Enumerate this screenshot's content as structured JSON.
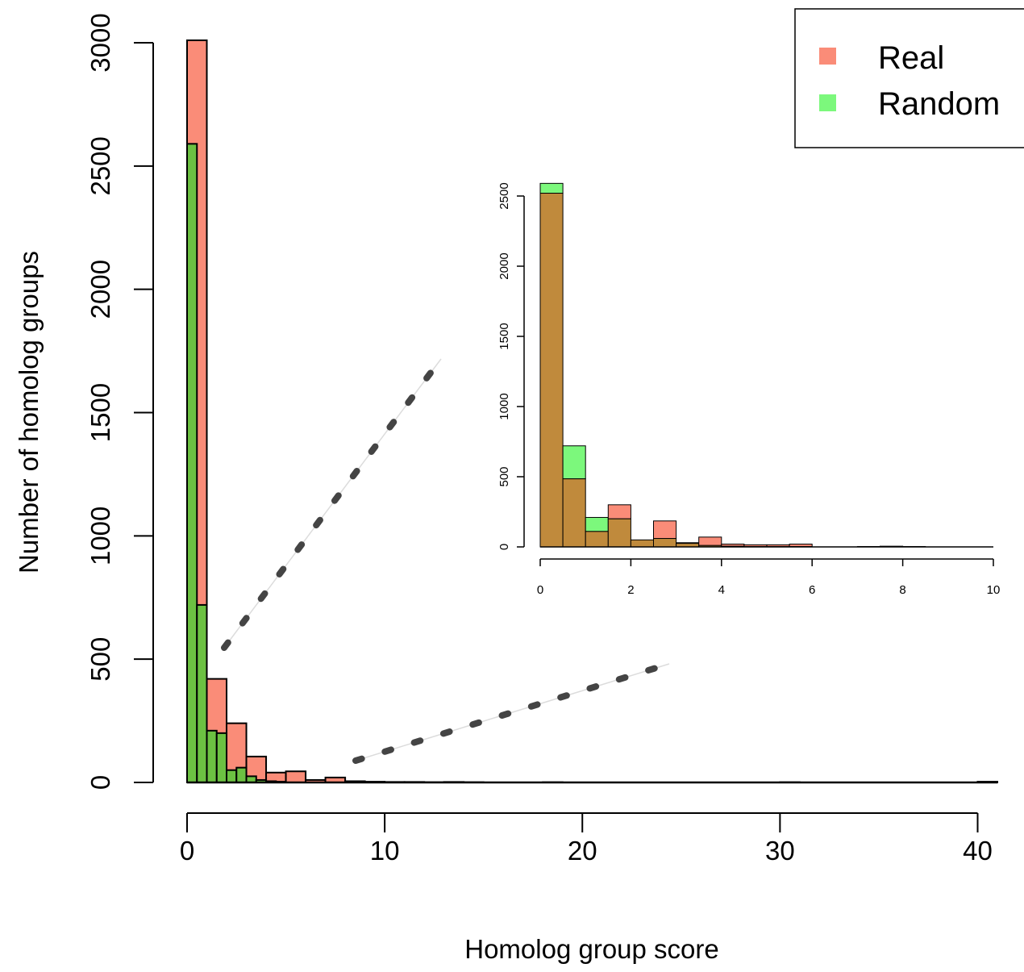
{
  "chart_data": [
    {
      "type": "bar",
      "panel": "main",
      "xlabel": "Homolog group score",
      "ylabel": "Number of homolog groups",
      "xlim": [
        0,
        41
      ],
      "ylim": [
        0,
        3000
      ],
      "xticks": [
        0,
        10,
        20,
        30,
        40
      ],
      "yticks": [
        0,
        500,
        1000,
        1500,
        2000,
        2500,
        3000
      ],
      "series": [
        {
          "name": "Real",
          "color": "#FA8C78",
          "bins": [
            [
              0,
              1,
              3010
            ],
            [
              1,
              2,
              420
            ],
            [
              2,
              3,
              240
            ],
            [
              3,
              4,
              105
            ],
            [
              4,
              5,
              40
            ],
            [
              5,
              6,
              45
            ],
            [
              6,
              7,
              10
            ],
            [
              7,
              8,
              20
            ],
            [
              8,
              9,
              5
            ],
            [
              9,
              10,
              3
            ],
            [
              10,
              11,
              2
            ],
            [
              11,
              12,
              2
            ],
            [
              12,
              13,
              1
            ],
            [
              13,
              14,
              2
            ],
            [
              14,
              15,
              1
            ],
            [
              18,
              19,
              1
            ],
            [
              30,
              31,
              1
            ],
            [
              40,
              41,
              3
            ]
          ]
        },
        {
          "name": "Random",
          "color": "#6CC142",
          "bins": [
            [
              0,
              0.5,
              2590
            ],
            [
              0.5,
              1,
              720
            ],
            [
              1,
              1.5,
              210
            ],
            [
              1.5,
              2,
              200
            ],
            [
              2,
              2.5,
              50
            ],
            [
              2.5,
              3,
              60
            ],
            [
              3,
              3.5,
              25
            ],
            [
              3.5,
              4,
              10
            ],
            [
              4,
              4.5,
              5
            ],
            [
              4.5,
              5,
              3
            ]
          ]
        }
      ]
    },
    {
      "type": "bar",
      "panel": "inset",
      "xlim": [
        0,
        10
      ],
      "ylim": [
        0,
        2500
      ],
      "xticks": [
        0,
        2,
        4,
        6,
        8,
        10
      ],
      "yticks": [
        0,
        500,
        1000,
        1500,
        2000,
        2500
      ],
      "bin_width": 0.5,
      "series": [
        {
          "name": "Real",
          "color": "#FA8C78",
          "values": [
            2520,
            485,
            110,
            300,
            50,
            185,
            30,
            70,
            20,
            15,
            15,
            20,
            0,
            0,
            3,
            5,
            3,
            0,
            0,
            0
          ]
        },
        {
          "name": "Random",
          "color": "#7CF87C",
          "values": [
            2590,
            720,
            210,
            200,
            50,
            60,
            25,
            10,
            5,
            3,
            3,
            3,
            0,
            0,
            0,
            0,
            0,
            0,
            0,
            0
          ]
        }
      ],
      "overlap_color": "#C08A3C"
    }
  ],
  "legend": {
    "placement": "top-right",
    "items": [
      {
        "label": "Real",
        "color": "#FA8C78"
      },
      {
        "label": "Random",
        "color": "#7CF87C"
      }
    ]
  }
}
